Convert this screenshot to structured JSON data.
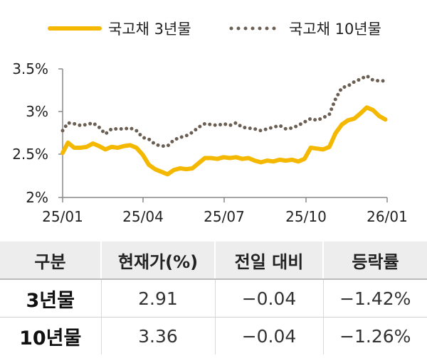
{
  "chart_data": {
    "type": "line",
    "x_tick_labels": [
      "25/01",
      "25/04",
      "25/07",
      "25/10",
      "26/01"
    ],
    "y_tick_labels": [
      "3.5%",
      "3%",
      "2.5%",
      "2%"
    ],
    "ylim": [
      2.0,
      3.5
    ],
    "x_range": [
      "2025-01-01",
      "2026-01-01"
    ],
    "legend_position": "top",
    "grid": false,
    "series": [
      {
        "name": "국고채 3년물",
        "style": "solid",
        "color": "#f5b800",
        "x": [
          "2025-01-01",
          "2025-01-07",
          "2025-01-14",
          "2025-01-21",
          "2025-01-28",
          "2025-02-04",
          "2025-02-11",
          "2025-02-18",
          "2025-02-25",
          "2025-03-04",
          "2025-03-11",
          "2025-03-18",
          "2025-03-25",
          "2025-04-01",
          "2025-04-08",
          "2025-04-15",
          "2025-04-22",
          "2025-04-29",
          "2025-05-06",
          "2025-05-13",
          "2025-05-20",
          "2025-05-27",
          "2025-06-03",
          "2025-06-10",
          "2025-06-17",
          "2025-06-24",
          "2025-07-01",
          "2025-07-08",
          "2025-07-15",
          "2025-07-22",
          "2025-07-29",
          "2025-08-05",
          "2025-08-12",
          "2025-08-19",
          "2025-08-26",
          "2025-09-02",
          "2025-09-09",
          "2025-09-16",
          "2025-09-23",
          "2025-09-30",
          "2025-10-07",
          "2025-10-14",
          "2025-10-21",
          "2025-10-28",
          "2025-11-04",
          "2025-11-11",
          "2025-11-18",
          "2025-11-25",
          "2025-12-02",
          "2025-12-09",
          "2025-12-16",
          "2025-12-23",
          "2025-12-30"
        ],
        "values": [
          2.52,
          2.64,
          2.58,
          2.58,
          2.59,
          2.63,
          2.6,
          2.56,
          2.59,
          2.58,
          2.6,
          2.61,
          2.58,
          2.5,
          2.38,
          2.33,
          2.3,
          2.27,
          2.32,
          2.34,
          2.33,
          2.34,
          2.4,
          2.46,
          2.46,
          2.45,
          2.47,
          2.46,
          2.47,
          2.45,
          2.46,
          2.43,
          2.41,
          2.43,
          2.42,
          2.44,
          2.43,
          2.44,
          2.42,
          2.45,
          2.58,
          2.57,
          2.56,
          2.59,
          2.75,
          2.85,
          2.9,
          2.92,
          2.98,
          3.05,
          3.02,
          2.95,
          2.91
        ]
      },
      {
        "name": "국고채 10년물",
        "style": "dotted",
        "color": "#6b5e52",
        "x": [
          "2025-01-01",
          "2025-01-07",
          "2025-01-14",
          "2025-01-21",
          "2025-01-28",
          "2025-02-04",
          "2025-02-11",
          "2025-02-18",
          "2025-02-25",
          "2025-03-04",
          "2025-03-11",
          "2025-03-18",
          "2025-03-25",
          "2025-04-01",
          "2025-04-08",
          "2025-04-15",
          "2025-04-22",
          "2025-04-29",
          "2025-05-06",
          "2025-05-13",
          "2025-05-20",
          "2025-05-27",
          "2025-06-03",
          "2025-06-10",
          "2025-06-17",
          "2025-06-24",
          "2025-07-01",
          "2025-07-08",
          "2025-07-15",
          "2025-07-22",
          "2025-07-29",
          "2025-08-05",
          "2025-08-12",
          "2025-08-19",
          "2025-08-26",
          "2025-09-02",
          "2025-09-09",
          "2025-09-16",
          "2025-09-23",
          "2025-09-30",
          "2025-10-07",
          "2025-10-14",
          "2025-10-21",
          "2025-10-28",
          "2025-11-04",
          "2025-11-11",
          "2025-11-18",
          "2025-11-25",
          "2025-12-02",
          "2025-12-09",
          "2025-12-16",
          "2025-12-23",
          "2025-12-30"
        ],
        "values": [
          2.78,
          2.87,
          2.86,
          2.84,
          2.85,
          2.87,
          2.82,
          2.74,
          2.8,
          2.8,
          2.8,
          2.81,
          2.78,
          2.7,
          2.68,
          2.62,
          2.6,
          2.6,
          2.67,
          2.7,
          2.72,
          2.76,
          2.82,
          2.86,
          2.85,
          2.84,
          2.86,
          2.84,
          2.87,
          2.82,
          2.81,
          2.8,
          2.78,
          2.8,
          2.82,
          2.84,
          2.8,
          2.81,
          2.84,
          2.88,
          2.92,
          2.9,
          2.93,
          2.97,
          3.15,
          3.28,
          3.3,
          3.35,
          3.38,
          3.42,
          3.37,
          3.36,
          3.36
        ]
      }
    ]
  },
  "table": {
    "headers": [
      "구분",
      "현재가(%)",
      "전일 대비",
      "등락률"
    ],
    "rows": [
      {
        "label": "3년물",
        "current": "2.91",
        "change": "−0.04",
        "rate": "−1.42%"
      },
      {
        "label": "10년물",
        "current": "3.36",
        "change": "−0.04",
        "rate": "−1.26%"
      }
    ]
  }
}
